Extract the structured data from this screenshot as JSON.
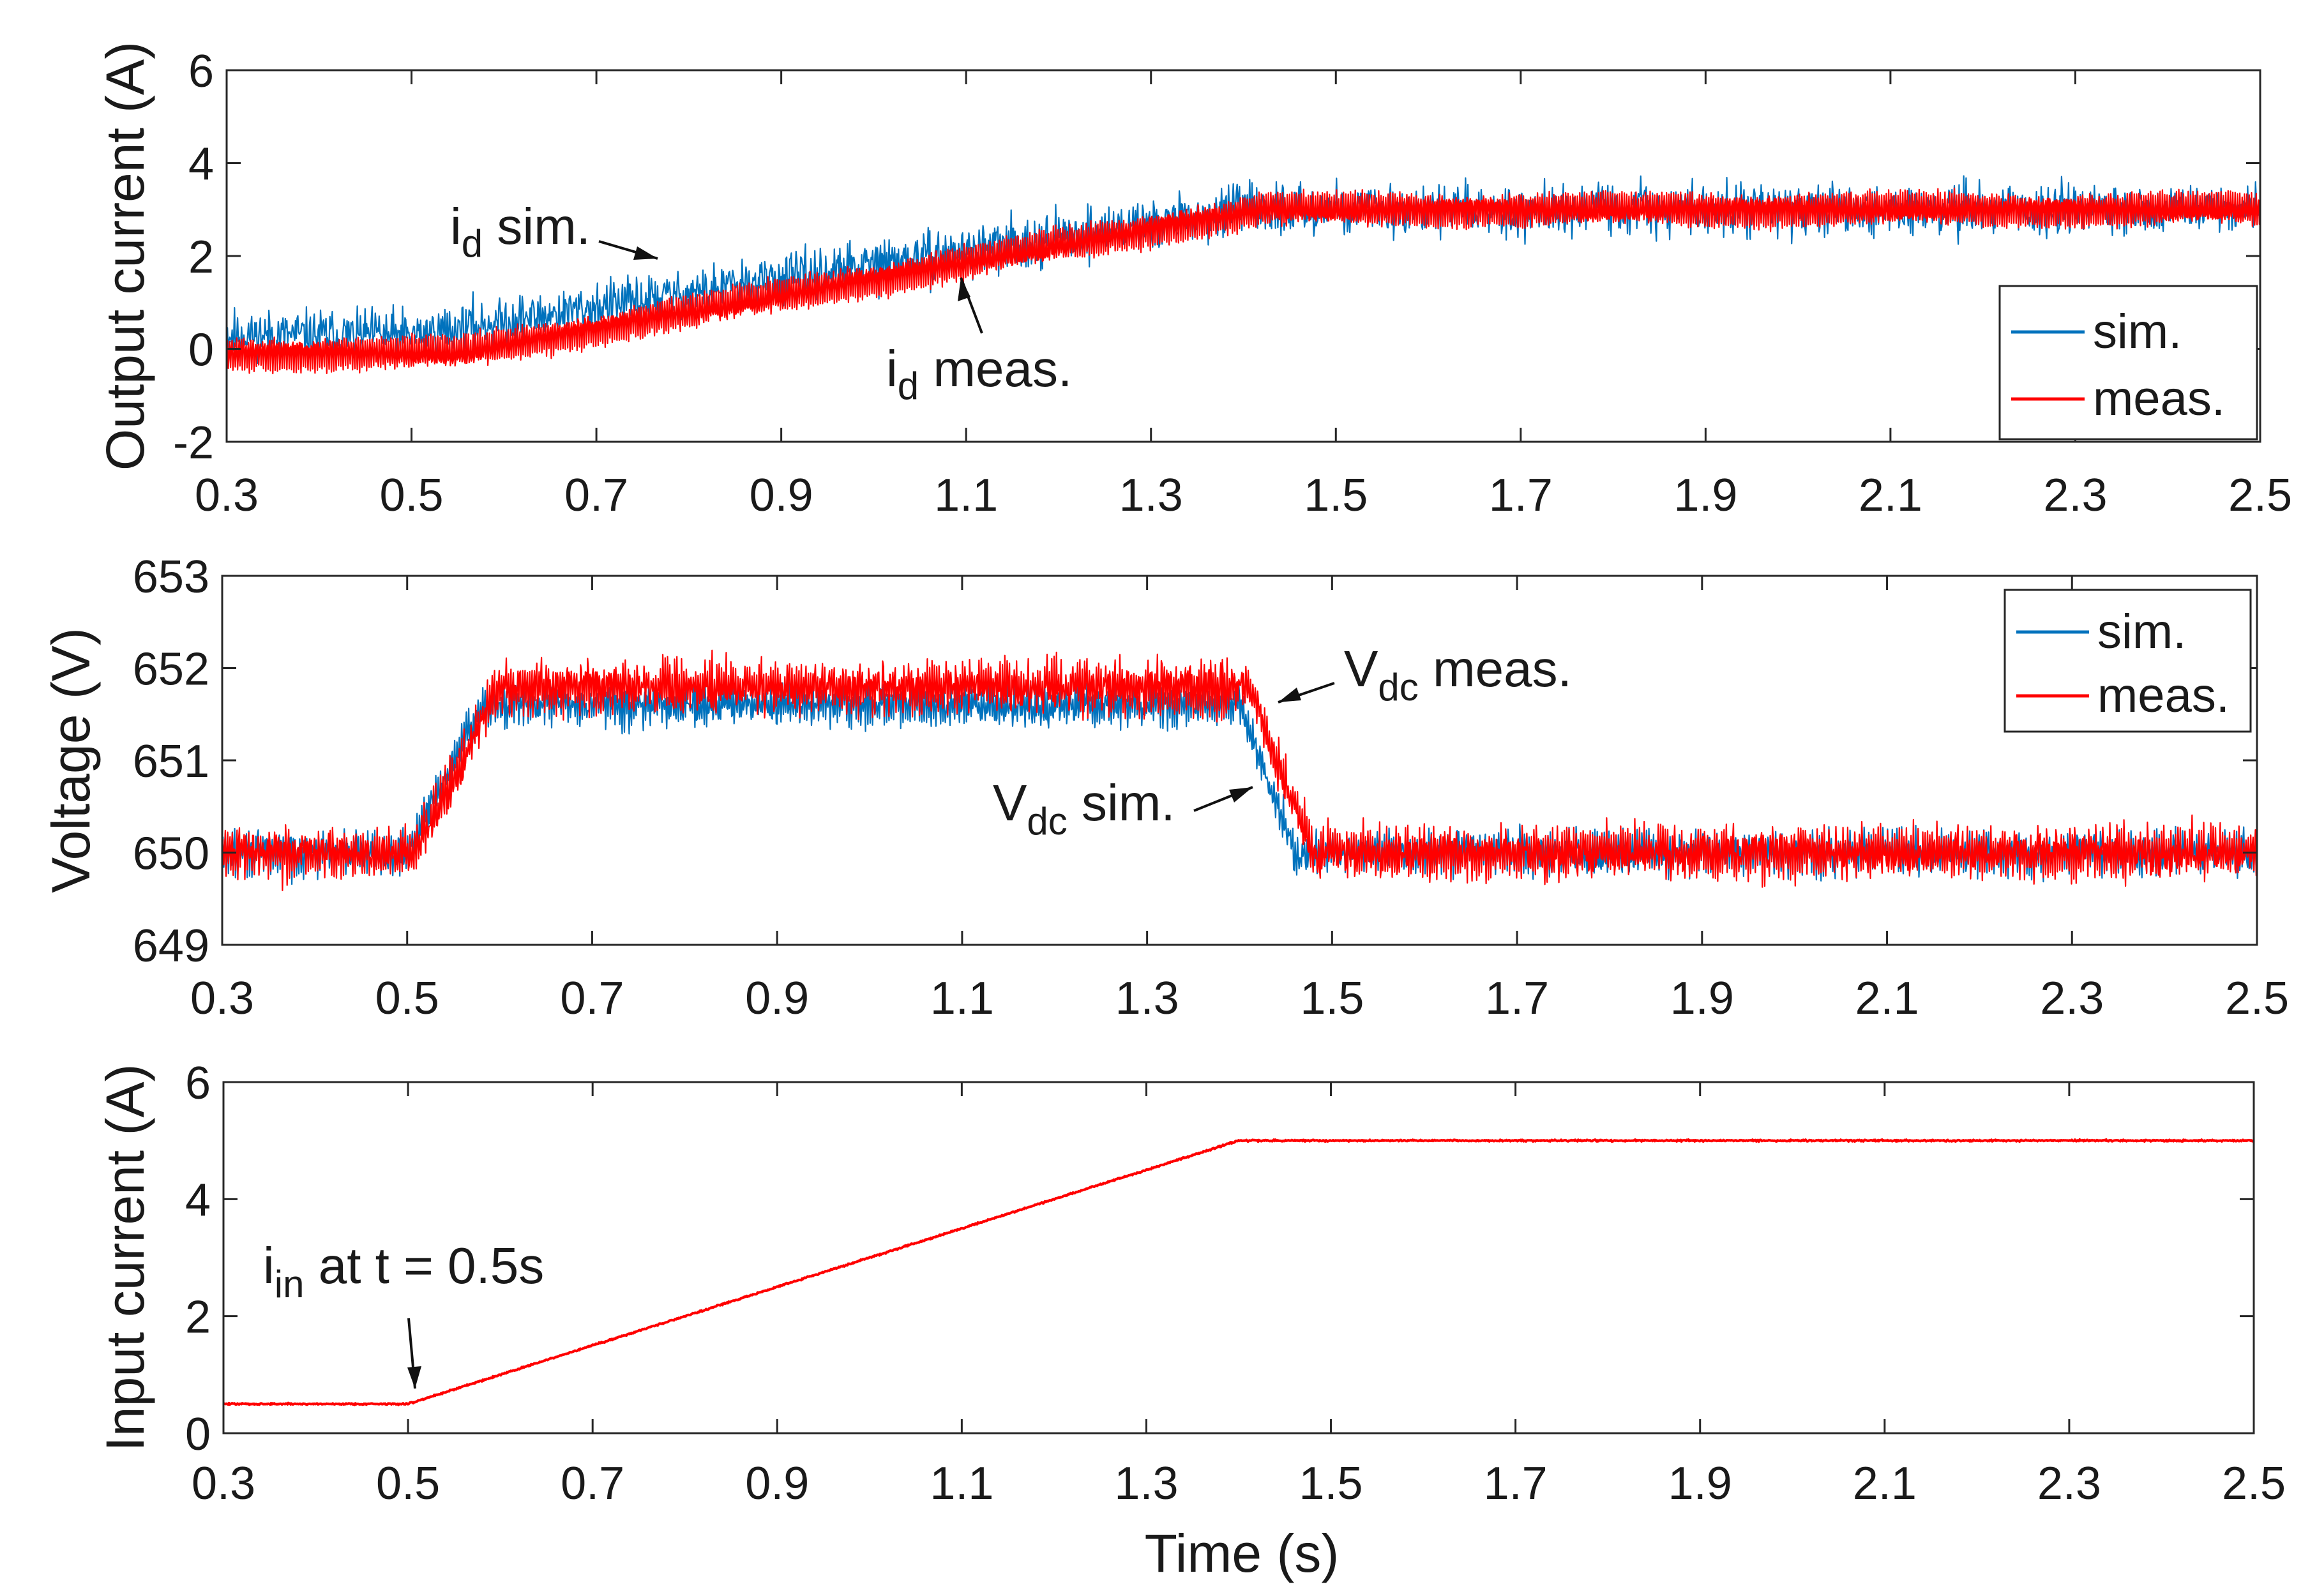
{
  "colors": {
    "sim": "#0072BD",
    "meas": "#FF0000",
    "axis": "#262626"
  },
  "chart_data": [
    {
      "type": "line",
      "id": "output-current",
      "ylabel": "Output current (A)",
      "xlim": [
        0.3,
        2.5
      ],
      "ylim": [
        -2,
        6
      ],
      "xticks": [
        "0.3",
        "0.5",
        "0.7",
        "0.9",
        "1.1",
        "1.3",
        "1.5",
        "1.7",
        "1.9",
        "2.1",
        "2.3",
        "2.5"
      ],
      "yticks": [
        "-2",
        "0",
        "2",
        "4",
        "6"
      ],
      "series": [
        {
          "name": "sim.",
          "color": "#0072BD",
          "noise": 0.75,
          "ripple": 0.1,
          "points": [
            [
              0.3,
              0.3
            ],
            [
              0.5,
              0.3
            ],
            [
              1.4,
              3.0
            ],
            [
              2.5,
              3.0
            ]
          ]
        },
        {
          "name": "meas.",
          "color": "#FF0000",
          "noise": 0.15,
          "ripple": 0.35,
          "points": [
            [
              0.3,
              -0.1
            ],
            [
              0.55,
              -0.1
            ],
            [
              1.42,
              3.0
            ],
            [
              2.5,
              3.0
            ]
          ]
        }
      ],
      "legend": [
        "sim.",
        "meas."
      ],
      "annotations": {
        "id_sim": {
          "main": "i",
          "sub": "d",
          "rest": " sim."
        },
        "id_meas": {
          "main": "i",
          "sub": "d",
          "rest": " meas."
        }
      }
    },
    {
      "type": "line",
      "id": "voltage",
      "ylabel": "Voltage (V)",
      "xlim": [
        0.3,
        2.5
      ],
      "ylim": [
        649,
        653
      ],
      "xticks": [
        "0.3",
        "0.5",
        "0.7",
        "0.9",
        "1.1",
        "1.3",
        "1.5",
        "1.7",
        "1.9",
        "2.1",
        "2.3",
        "2.5"
      ],
      "yticks": [
        "649",
        "650",
        "651",
        "652",
        "653"
      ],
      "series": [
        {
          "name": "sim.",
          "color": "#0072BD",
          "noise": 0.22,
          "ripple": 0.15,
          "points": [
            [
              0.3,
              650.0
            ],
            [
              0.5,
              650.0
            ],
            [
              0.58,
              651.6
            ],
            [
              1.4,
              651.6
            ],
            [
              1.46,
              650.0
            ],
            [
              2.5,
              650.0
            ]
          ]
        },
        {
          "name": "meas.",
          "color": "#FF0000",
          "noise": 0.25,
          "ripple": 0.2,
          "points": [
            [
              0.3,
              650.0
            ],
            [
              0.51,
              650.0
            ],
            [
              0.6,
              651.8
            ],
            [
              1.41,
              651.8
            ],
            [
              1.48,
              650.0
            ],
            [
              2.5,
              650.0
            ]
          ]
        }
      ],
      "legend": [
        "sim.",
        "meas."
      ],
      "annotations": {
        "vdc_meas": {
          "main": "V",
          "sub": "dc",
          "rest": " meas."
        },
        "vdc_sim": {
          "main": "V",
          "sub": "dc",
          "rest": " sim."
        }
      }
    },
    {
      "type": "line",
      "id": "input-current",
      "ylabel": "Input current  (A)",
      "xlabel": "Time (s)",
      "xlim": [
        0.3,
        2.5
      ],
      "ylim": [
        0,
        6
      ],
      "xticks": [
        "0.3",
        "0.5",
        "0.7",
        "0.9",
        "1.1",
        "1.3",
        "1.5",
        "1.7",
        "1.9",
        "2.1",
        "2.3",
        "2.5"
      ],
      "yticks": [
        "0",
        "2",
        "4",
        "6"
      ],
      "series": [
        {
          "name": "meas.",
          "color": "#FF0000",
          "noise": 0.02,
          "ripple": 0.0,
          "points": [
            [
              0.3,
              0.5
            ],
            [
              0.5,
              0.5
            ],
            [
              1.4,
              5.0
            ],
            [
              2.5,
              5.0
            ]
          ]
        }
      ],
      "annotations": {
        "iin": {
          "main": "i",
          "sub": "in",
          "rest": " at t = 0.5s"
        }
      }
    }
  ]
}
